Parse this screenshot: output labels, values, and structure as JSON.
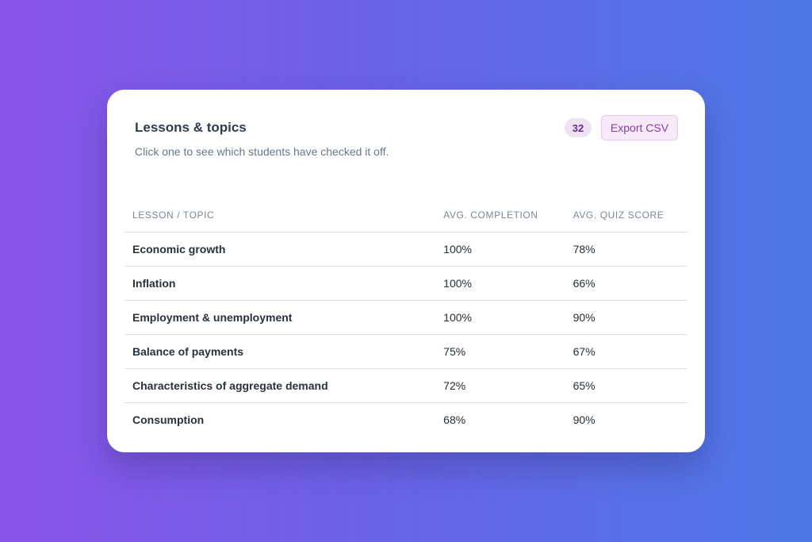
{
  "card": {
    "title": "Lessons & topics",
    "subtitle": "Click one to see which students have checked it off.",
    "count": "32",
    "export_label": "Export CSV"
  },
  "table": {
    "headers": {
      "topic": "LESSON / TOPIC",
      "completion": "AVG. COMPLETION",
      "quiz": "AVG. QUIZ SCORE"
    },
    "rows": [
      {
        "topic": "Economic growth",
        "completion": "100%",
        "quiz": "78%"
      },
      {
        "topic": "Inflation",
        "completion": "100%",
        "quiz": "66%"
      },
      {
        "topic": "Employment & unemployment",
        "completion": "100%",
        "quiz": "90%"
      },
      {
        "topic": "Balance of payments",
        "completion": "75%",
        "quiz": "67%"
      },
      {
        "topic": "Characteristics of aggregate demand",
        "completion": "72%",
        "quiz": "65%"
      },
      {
        "topic": "Consumption",
        "completion": "68%",
        "quiz": "90%"
      }
    ]
  },
  "colors": {
    "background_start": "#8a54e8",
    "background_end": "#4c78e6",
    "badge_bg": "#efe2f5",
    "button_bg": "#f6e9f8",
    "button_text": "#8a3aa6"
  }
}
